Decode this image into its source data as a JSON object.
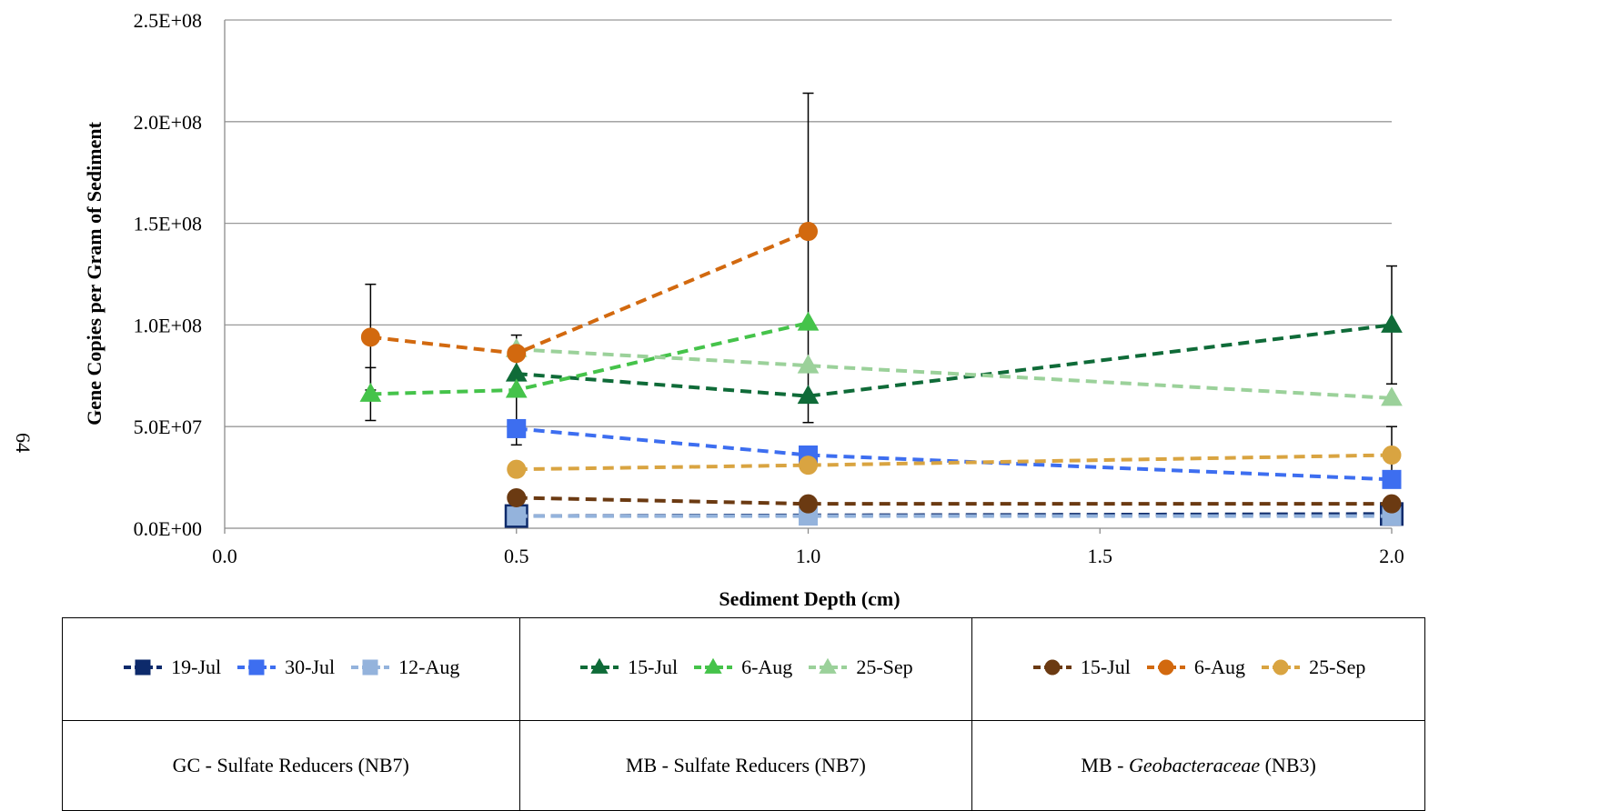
{
  "page_number": "64",
  "chart_data": {
    "type": "line",
    "xlabel": "Sediment Depth (cm)",
    "ylabel": "Gene Copies per Gram of Sediment",
    "xlim": [
      0,
      2
    ],
    "ylim": [
      0,
      250000000
    ],
    "x_ticks": [
      "0.0",
      "0.5",
      "1.0",
      "1.5",
      "2.0"
    ],
    "y_ticks": [
      "0.0E+00",
      "5.0E+07",
      "1.0E+08",
      "1.5E+08",
      "2.0E+08",
      "2.5E+08"
    ],
    "grid": "horizontal",
    "legend_position": "bottom",
    "groups": [
      {
        "label_prefix": "GC - Sulfate Reducers (NB7)",
        "label_italic": "",
        "label_suffix": ""
      },
      {
        "label_prefix": "MB - Sulfate Reducers (NB7)",
        "label_italic": "",
        "label_suffix": ""
      },
      {
        "label_prefix": "MB - ",
        "label_italic": "Geobacteraceae",
        "label_suffix": " (NB3)"
      }
    ],
    "series": [
      {
        "name": "19-Jul",
        "group": 0,
        "marker": "square",
        "color": "#0d2a6b",
        "x": [
          0.5,
          2.0
        ],
        "y": [
          6000000,
          7000000
        ],
        "err": [
          0,
          0
        ]
      },
      {
        "name": "30-Jul",
        "group": 0,
        "marker": "square",
        "color": "#3d6ef0",
        "x": [
          0.5,
          1.0,
          2.0
        ],
        "y": [
          49000000,
          36000000,
          24000000
        ],
        "err": [
          0,
          0,
          0
        ]
      },
      {
        "name": "12-Aug",
        "group": 0,
        "marker": "square",
        "color": "#94b3dc",
        "x": [
          0.5,
          1.0,
          2.0
        ],
        "y": [
          6000000,
          6000000,
          6000000
        ],
        "err": [
          0,
          0,
          0
        ]
      },
      {
        "name": "15-Jul",
        "group": 1,
        "marker": "triangle",
        "color": "#0f6b38",
        "x": [
          0.5,
          1.0,
          2.0
        ],
        "y": [
          76000000,
          65000000,
          100000000
        ],
        "err": [
          0,
          13000000,
          29000000
        ]
      },
      {
        "name": "6-Aug",
        "group": 1,
        "marker": "triangle",
        "color": "#45c34a",
        "x": [
          0.25,
          0.5,
          1.0
        ],
        "y": [
          66000000,
          68000000,
          101000000
        ],
        "err": [
          13000000,
          27000000,
          0
        ]
      },
      {
        "name": "25-Sep",
        "group": 1,
        "marker": "triangle",
        "color": "#9bd19a",
        "x": [
          0.5,
          1.0,
          2.0
        ],
        "y": [
          88000000,
          80000000,
          64000000
        ],
        "err": [
          0,
          0,
          0
        ]
      },
      {
        "name": "15-Jul",
        "group": 2,
        "marker": "circle",
        "color": "#6b3a12",
        "x": [
          0.5,
          1.0,
          2.0
        ],
        "y": [
          15000000,
          12000000,
          12000000
        ],
        "err": [
          0,
          0,
          0
        ]
      },
      {
        "name": "6-Aug",
        "group": 2,
        "marker": "circle",
        "color": "#d2690f",
        "x": [
          0.25,
          0.5,
          1.0
        ],
        "y": [
          94000000,
          86000000,
          146000000
        ],
        "err": [
          26000000,
          0,
          68000000
        ]
      },
      {
        "name": "25-Sep",
        "group": 2,
        "marker": "circle",
        "color": "#d9a441",
        "x": [
          0.5,
          1.0,
          2.0
        ],
        "y": [
          29000000,
          31000000,
          36000000
        ],
        "err": [
          0,
          0,
          14000000
        ]
      }
    ]
  }
}
